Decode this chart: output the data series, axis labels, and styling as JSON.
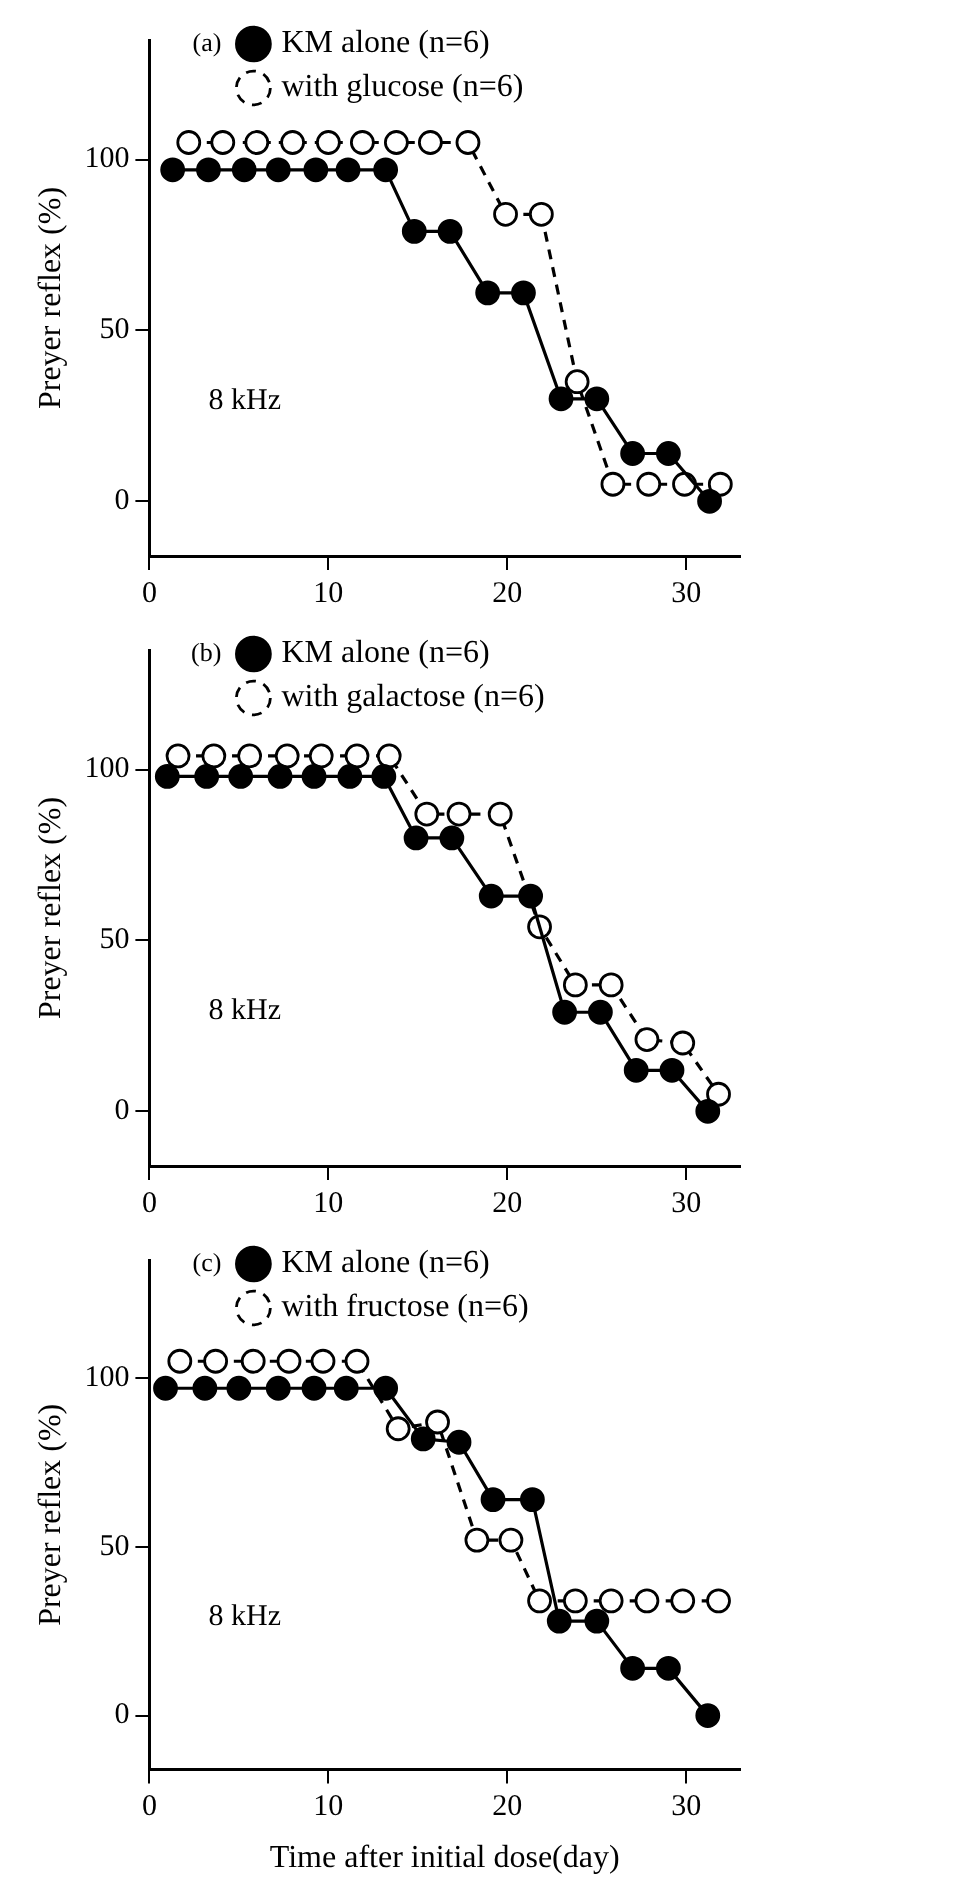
{
  "chart_data": [
    {
      "type": "line",
      "title": "(a)",
      "ylabel": "Preyer reflex (%)",
      "annotations": [
        "8 kHz"
      ],
      "xlim": [
        0,
        33
      ],
      "xticks": [
        0,
        10,
        20,
        30
      ],
      "ylim": [
        -16,
        135
      ],
      "yticks": [
        0,
        50,
        100
      ],
      "grid": false,
      "legend": "top",
      "marker": "circle",
      "series": [
        {
          "name": "KM alone (n=6)",
          "color": "#000000",
          "line_style": "solid",
          "x": [
            1.3,
            3.3,
            5.3,
            7.2,
            9.3,
            11.1,
            13.2,
            14.8,
            16.8,
            18.9,
            20.9,
            23.0,
            25.0,
            27.0,
            29.0,
            31.3
          ],
          "values": [
            97,
            97,
            97,
            97,
            97,
            97,
            97,
            79,
            79,
            61,
            61,
            30,
            30,
            14,
            14,
            0
          ]
        },
        {
          "name": "with glucose (n=6)",
          "color": "#000000",
          "line_style": "dashed",
          "x": [
            2.2,
            4.1,
            6.0,
            8.0,
            10.0,
            11.9,
            13.8,
            15.7,
            17.8,
            19.9,
            21.9,
            23.9,
            25.9,
            27.9,
            29.9,
            31.9
          ],
          "values": [
            105,
            105,
            105,
            105,
            105,
            105,
            105,
            105,
            105,
            84,
            84,
            35,
            5,
            5,
            5,
            5
          ]
        }
      ]
    },
    {
      "type": "line",
      "title": "(b)",
      "ylabel": "Preyer reflex (%)",
      "annotations": [
        "8 kHz"
      ],
      "xlim": [
        0,
        33
      ],
      "xticks": [
        0,
        10,
        20,
        30
      ],
      "ylim": [
        -16,
        135
      ],
      "yticks": [
        0,
        50,
        100
      ],
      "grid": false,
      "legend": "top",
      "marker": "circle",
      "series": [
        {
          "name": "KM alone (n=6)",
          "color": "#000000",
          "line_style": "solid",
          "x": [
            1.0,
            3.2,
            5.1,
            7.3,
            9.2,
            11.2,
            13.1,
            14.9,
            16.9,
            19.1,
            21.3,
            23.2,
            25.2,
            27.2,
            29.2,
            31.2
          ],
          "values": [
            98,
            98,
            98,
            98,
            98,
            98,
            98,
            80,
            80,
            63,
            63,
            29,
            29,
            12,
            12,
            0
          ]
        },
        {
          "name": "with galactose (n=6)",
          "color": "#000000",
          "line_style": "dashed",
          "x": [
            1.6,
            3.6,
            5.6,
            7.7,
            9.6,
            11.6,
            13.4,
            15.5,
            17.3,
            19.6,
            21.8,
            23.8,
            25.8,
            27.8,
            29.8,
            31.8
          ],
          "values": [
            104,
            104,
            104,
            104,
            104,
            104,
            104,
            87,
            87,
            87,
            54,
            37,
            37,
            21,
            20,
            5
          ]
        }
      ]
    },
    {
      "type": "line",
      "title": "(c)",
      "xlabel": "Time after initial dose(day)",
      "ylabel": "Preyer reflex (%)",
      "annotations": [
        "8 kHz"
      ],
      "xlim": [
        0,
        33
      ],
      "xticks": [
        0,
        10,
        20,
        30
      ],
      "ylim": [
        -16,
        135
      ],
      "yticks": [
        0,
        50,
        100
      ],
      "grid": false,
      "legend": "top",
      "marker": "circle",
      "series": [
        {
          "name": "KM alone (n=6)",
          "color": "#000000",
          "line_style": "solid",
          "x": [
            0.9,
            3.1,
            5.0,
            7.2,
            9.2,
            11.0,
            13.2,
            15.3,
            17.3,
            19.2,
            21.4,
            22.9,
            25.0,
            27.0,
            29.0,
            31.2
          ],
          "values": [
            97,
            97,
            97,
            97,
            97,
            97,
            97,
            82,
            81,
            64,
            64,
            28,
            28,
            14,
            14,
            0
          ]
        },
        {
          "name": "with fructose (n=6)",
          "color": "#000000",
          "line_style": "dashed",
          "x": [
            1.7,
            3.7,
            5.8,
            7.8,
            9.7,
            11.6,
            13.9,
            16.1,
            18.3,
            20.2,
            21.8,
            23.8,
            25.8,
            27.8,
            29.8,
            31.8
          ],
          "values": [
            105,
            105,
            105,
            105,
            105,
            105,
            85,
            87,
            52,
            52,
            34,
            34,
            34,
            34,
            34,
            34
          ]
        }
      ]
    }
  ]
}
